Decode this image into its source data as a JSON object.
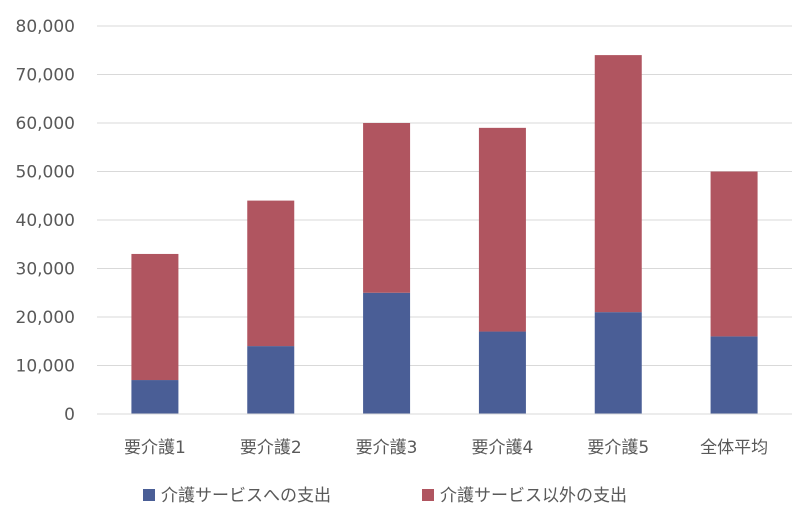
{
  "chart_data": {
    "type": "bar",
    "stacked": true,
    "categories": [
      "要介護1",
      "要介護2",
      "要介護3",
      "要介護4",
      "要介護5",
      "全体平均"
    ],
    "series": [
      {
        "name": "介護サービスへの支出",
        "color": "#4A5E96",
        "values": [
          7000,
          14000,
          25000,
          17000,
          21000,
          16000
        ]
      },
      {
        "name": "介護サービス以外の支出",
        "color": "#B05560",
        "values": [
          26000,
          30000,
          35000,
          42000,
          53000,
          34000
        ]
      }
    ],
    "ylim": [
      0,
      80000
    ],
    "yticks": [
      "0",
      "10,000",
      "20,000",
      "30,000",
      "40,000",
      "50,000",
      "60,000",
      "70,000",
      "80,000"
    ],
    "grid": true,
    "legend": "bottom"
  }
}
